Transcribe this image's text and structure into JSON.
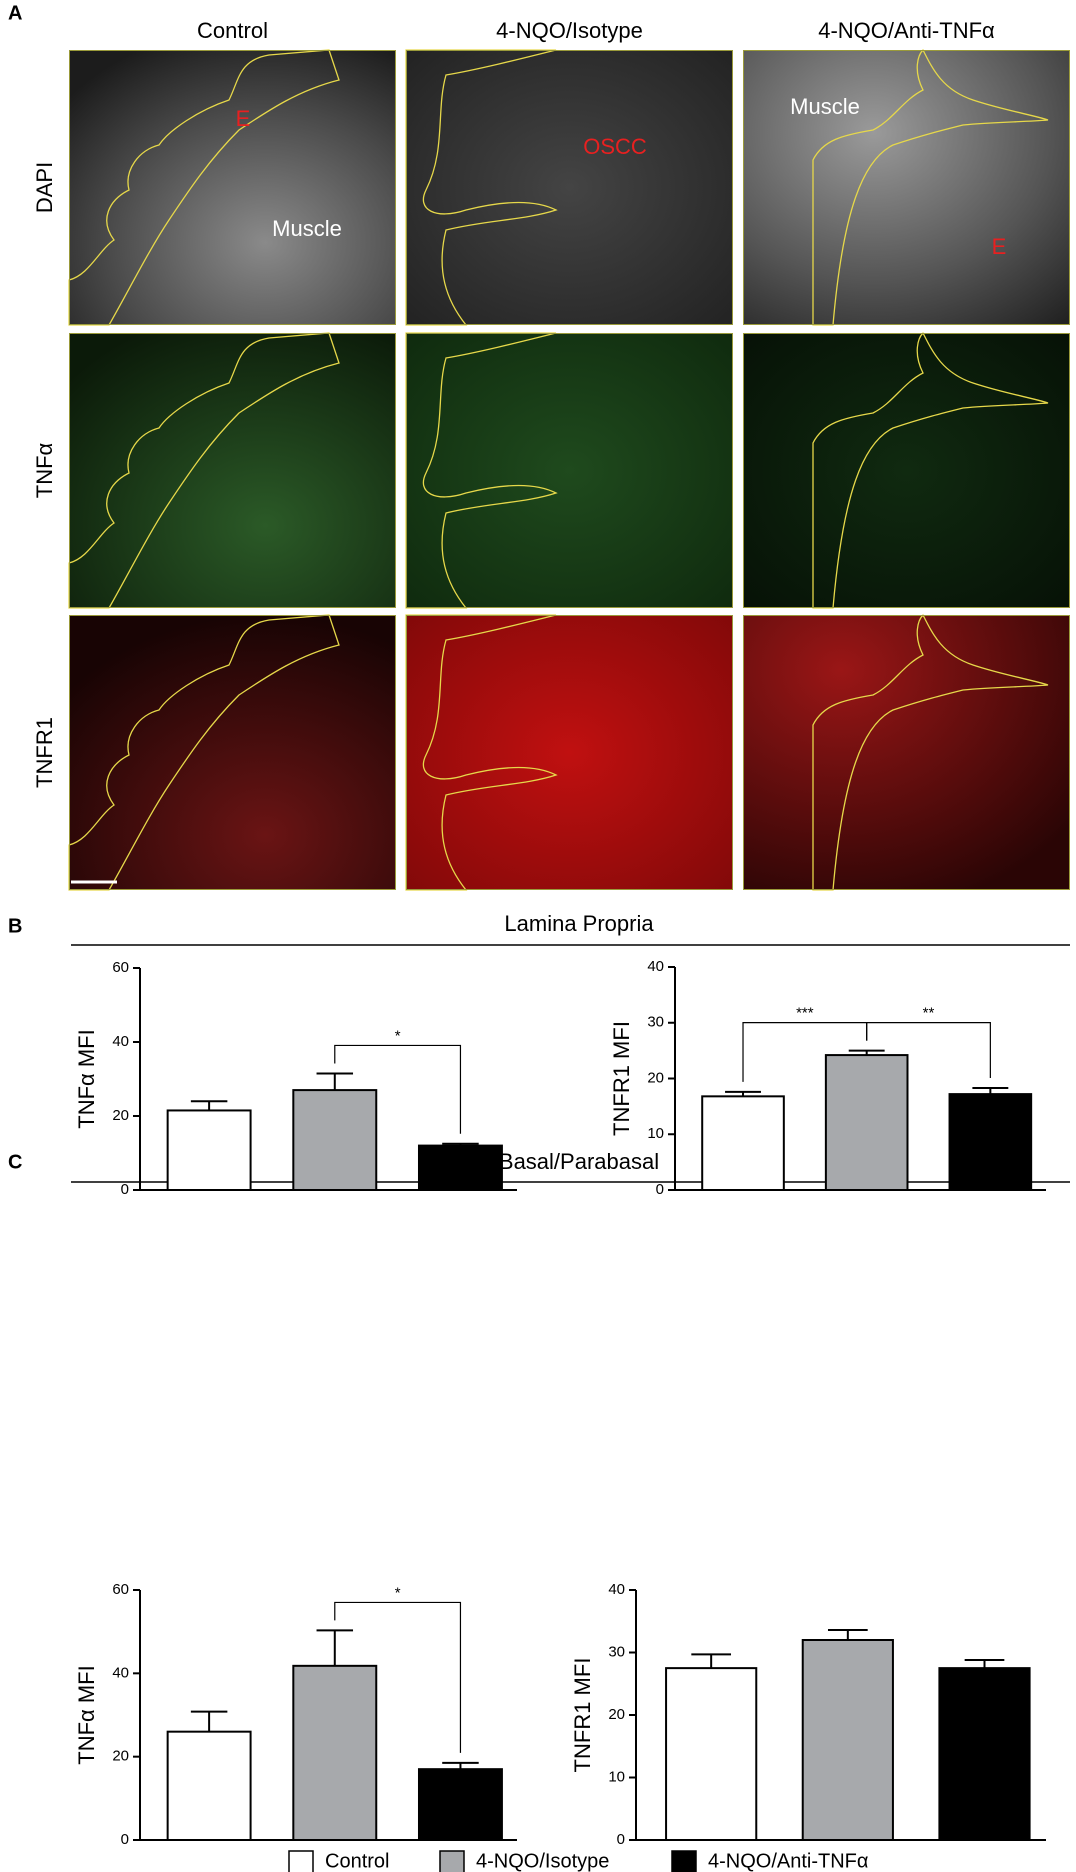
{
  "panel_a": {
    "letter": "A",
    "columns": [
      "Control",
      "4-NQO/Isotype",
      "4-NQO/Anti-TNFα"
    ],
    "rows": [
      "DAPI",
      "TNFα",
      "TNFR1"
    ],
    "labels": [
      "E",
      "Muscle",
      "OSCC",
      "Muscle",
      "E"
    ]
  },
  "sections": [
    {
      "letter": "B",
      "title": "Lamina Propria"
    },
    {
      "letter": "C",
      "title": "Basal/Parabasal"
    }
  ],
  "chart_data": [
    {
      "type": "bar",
      "y_label": "TNFα MFI",
      "categories": [
        "Control",
        "4-NQO/Isotype",
        "4-NQO/Anti-TNFα"
      ],
      "values": [
        21.5,
        27,
        12
      ],
      "errors": [
        2.5,
        4.5,
        0.5
      ],
      "colors": [
        "#ffffff",
        "#a7a9ac",
        "#000000"
      ],
      "ylim": [
        0,
        60
      ],
      "yticks": [
        0,
        20,
        40,
        60
      ],
      "significance": [
        {
          "label": "*",
          "from": 1,
          "to": 2
        }
      ]
    },
    {
      "type": "bar",
      "y_label": "TNFR1 MFI",
      "categories": [
        "Control",
        "4-NQO/Isotype",
        "4-NQO/Anti-TNFα"
      ],
      "values": [
        16.8,
        24.2,
        17.2
      ],
      "errors": [
        0.8,
        0.8,
        1.1
      ],
      "colors": [
        "#ffffff",
        "#a7a9ac",
        "#000000"
      ],
      "ylim": [
        0,
        40
      ],
      "yticks": [
        0,
        10,
        20,
        30,
        40
      ],
      "significance": [
        {
          "label": "***",
          "from": 0,
          "to": 1
        },
        {
          "label": "**",
          "from": 1,
          "to": 2
        }
      ]
    },
    {
      "type": "bar",
      "y_label": "TNFα MFI",
      "categories": [
        "Control",
        "4-NQO/Isotype",
        "4-NQO/Anti-TNFα"
      ],
      "values": [
        26,
        41.8,
        17
      ],
      "errors": [
        4.8,
        8.5,
        1.5
      ],
      "colors": [
        "#ffffff",
        "#a7a9ac",
        "#000000"
      ],
      "ylim": [
        0,
        60
      ],
      "yticks": [
        0,
        20,
        40,
        60
      ],
      "significance": [
        {
          "label": "*",
          "from": 1,
          "to": 2
        }
      ]
    },
    {
      "type": "bar",
      "y_label": "TNFR1 MFI",
      "categories": [
        "Control",
        "4-NQO/Isotype",
        "4-NQO/Anti-TNFα"
      ],
      "values": [
        27.5,
        32,
        27.5
      ],
      "errors": [
        2.2,
        1.6,
        1.3
      ],
      "colors": [
        "#ffffff",
        "#a7a9ac",
        "#000000"
      ],
      "ylim": [
        0,
        40
      ],
      "yticks": [
        0,
        10,
        20,
        30,
        40
      ]
    }
  ]
}
